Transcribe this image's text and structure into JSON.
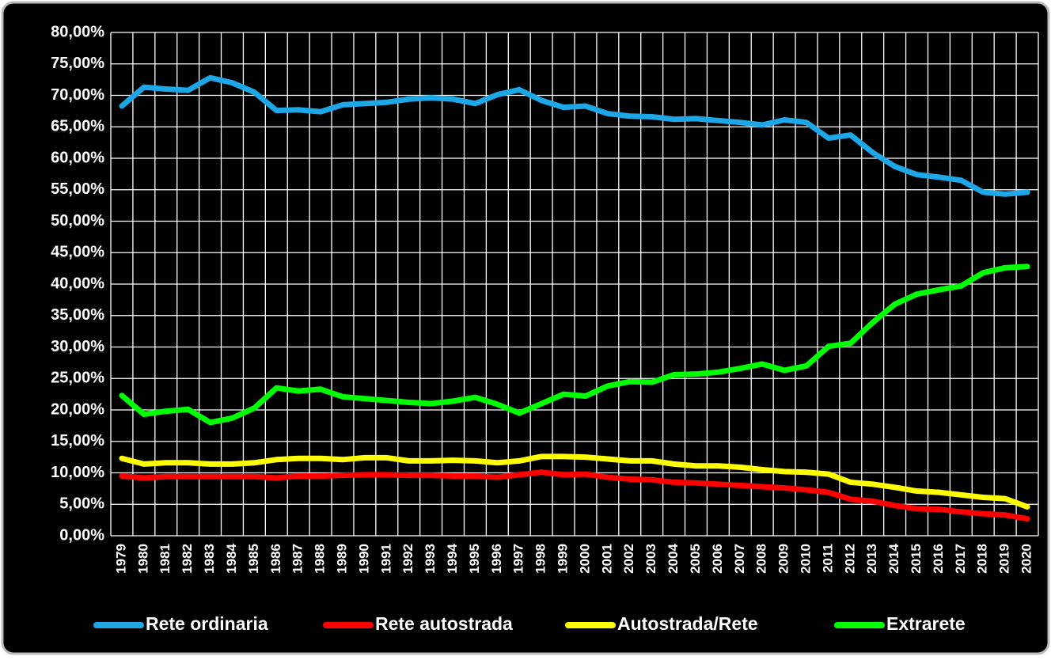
{
  "chart_data": {
    "type": "line",
    "categories": [
      "1979",
      "1980",
      "1981",
      "1982",
      "1983",
      "1984",
      "1985",
      "1986",
      "1987",
      "1988",
      "1989",
      "1990",
      "1991",
      "1992",
      "1993",
      "1994",
      "1995",
      "1996",
      "1997",
      "1998",
      "1999",
      "2000",
      "2001",
      "2002",
      "2003",
      "2004",
      "2005",
      "2006",
      "2007",
      "2008",
      "2009",
      "2010",
      "2011",
      "2012",
      "2013",
      "2014",
      "2015",
      "2016",
      "2017",
      "2018",
      "2019",
      "2020"
    ],
    "series": [
      {
        "name": "Rete ordinaria",
        "color": "#1ea7e6",
        "values": [
          68.3,
          71.3,
          71.0,
          70.8,
          72.8,
          72.0,
          70.5,
          67.6,
          67.7,
          67.4,
          68.5,
          68.7,
          68.9,
          69.4,
          69.6,
          69.4,
          68.7,
          70.1,
          70.9,
          69.2,
          68.1,
          68.3,
          67.1,
          66.7,
          66.6,
          66.2,
          66.3,
          66.0,
          65.7,
          65.3,
          66.1,
          65.7,
          63.2,
          63.7,
          60.9,
          58.7,
          57.4,
          57.0,
          56.5,
          54.6,
          54.3,
          54.6
        ]
      },
      {
        "name": "Rete autostrada",
        "color": "#ff0000",
        "values": [
          9.5,
          9.2,
          9.4,
          9.4,
          9.4,
          9.4,
          9.4,
          9.2,
          9.5,
          9.5,
          9.6,
          9.7,
          9.7,
          9.6,
          9.6,
          9.5,
          9.5,
          9.3,
          9.7,
          10.1,
          9.7,
          9.8,
          9.3,
          9.0,
          8.9,
          8.5,
          8.4,
          8.2,
          8.0,
          7.8,
          7.6,
          7.3,
          6.9,
          5.8,
          5.5,
          4.8,
          4.3,
          4.2,
          3.8,
          3.5,
          3.3,
          2.7
        ]
      },
      {
        "name": "Autostrada/Rete",
        "color": "#ffff00",
        "values": [
          12.3,
          11.4,
          11.6,
          11.6,
          11.4,
          11.4,
          11.6,
          12.1,
          12.3,
          12.3,
          12.1,
          12.4,
          12.4,
          11.9,
          11.9,
          12.0,
          11.9,
          11.6,
          11.9,
          12.6,
          12.6,
          12.5,
          12.2,
          11.9,
          11.9,
          11.4,
          11.1,
          11.1,
          10.9,
          10.5,
          10.2,
          10.1,
          9.8,
          8.5,
          8.2,
          7.7,
          7.1,
          6.9,
          6.5,
          6.1,
          5.9,
          4.6
        ]
      },
      {
        "name": "Extrarete",
        "color": "#00ff00",
        "values": [
          22.3,
          19.3,
          19.8,
          20.1,
          18.0,
          18.7,
          20.3,
          23.5,
          23.0,
          23.3,
          22.1,
          21.8,
          21.5,
          21.2,
          21.0,
          21.4,
          22.0,
          20.9,
          19.5,
          21.0,
          22.5,
          22.2,
          23.8,
          24.5,
          24.4,
          25.6,
          25.7,
          26.0,
          26.6,
          27.3,
          26.3,
          27.0,
          30.1,
          30.6,
          33.9,
          36.8,
          38.4,
          39.1,
          39.7,
          41.8,
          42.6,
          42.8
        ]
      }
    ],
    "ylim": [
      0,
      80
    ],
    "yticks": [
      {
        "value": 0,
        "label": "0,00%"
      },
      {
        "value": 5,
        "label": "5,00%"
      },
      {
        "value": 10,
        "label": "10,00%"
      },
      {
        "value": 15,
        "label": "15,00%"
      },
      {
        "value": 20,
        "label": "20,00%"
      },
      {
        "value": 25,
        "label": "25,00%"
      },
      {
        "value": 30,
        "label": "30,00%"
      },
      {
        "value": 35,
        "label": "35,00%"
      },
      {
        "value": 40,
        "label": "40,00%"
      },
      {
        "value": 45,
        "label": "45,00%"
      },
      {
        "value": 50,
        "label": "50,00%"
      },
      {
        "value": 55,
        "label": "55,00%"
      },
      {
        "value": 60,
        "label": "60,00%"
      },
      {
        "value": 65,
        "label": "65,00%"
      },
      {
        "value": 70,
        "label": "70,00%"
      },
      {
        "value": 75,
        "label": "75,00%"
      },
      {
        "value": 80,
        "label": "80,00%"
      }
    ],
    "grid": true,
    "legend": "bottom"
  }
}
